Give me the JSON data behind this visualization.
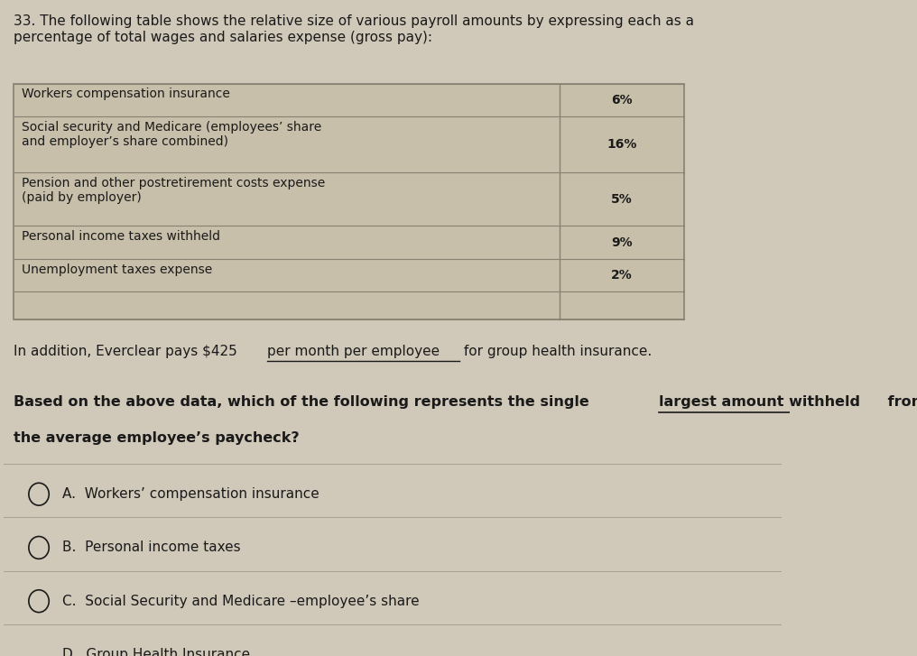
{
  "question_number": "33.",
  "intro_text": "The following table shows the relative size of various payroll amounts by expressing each as a\npercentage of total wages and salaries expense (gross pay):",
  "table_rows": [
    {
      "label": "Workers compensation insurance",
      "value": "6%"
    },
    {
      "label": "Social security and Medicare (employees’ share\nand employer’s share combined)",
      "value": "16%"
    },
    {
      "label": "Pension and other postretirement costs expense\n(paid by employer)",
      "value": "5%"
    },
    {
      "label": "Personal income taxes withheld",
      "value": "9%"
    },
    {
      "label": "Unemployment taxes expense",
      "value": "2%"
    },
    {
      "label": "",
      "value": ""
    }
  ],
  "addition_prefix": "In addition, Everclear pays $425 ",
  "addition_underlined": "per month per employee",
  "addition_suffix": " for group health insurance.",
  "question_prefix": "Based on the above data, which of the following represents the single ",
  "question_underlined": "largest amount withheld",
  "question_suffix": " from",
  "question_line2": "the average employee’s paycheck?",
  "options": [
    "A.  Workers’ compensation insurance",
    "B.  Personal income taxes",
    "C.  Social Security and Medicare –employee’s share",
    "D.  Group Health Insurance"
  ],
  "bg_color": "#d0c8b8",
  "table_bg": "#c8bfaa",
  "table_border": "#888070",
  "text_color": "#1a1a1a",
  "font_size_main": 11,
  "font_size_table": 10,
  "font_size_options": 11
}
